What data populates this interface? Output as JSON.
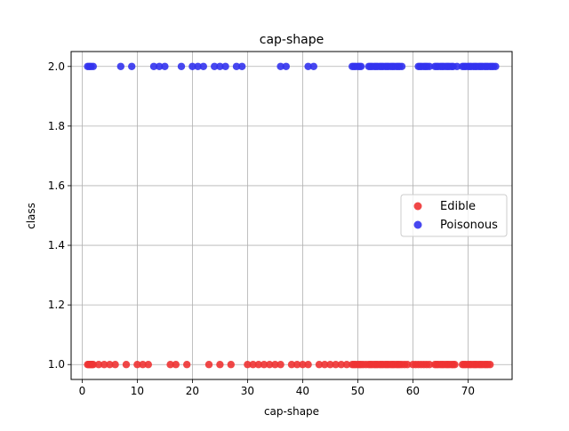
{
  "chart_data": {
    "type": "scatter",
    "title": "cap-shape",
    "xlabel": "cap-shape",
    "ylabel": "class",
    "xlim": [
      -2,
      78
    ],
    "ylim": [
      0.95,
      2.05
    ],
    "xticks": [
      {
        "value": 0,
        "label": "0"
      },
      {
        "value": 10,
        "label": "10"
      },
      {
        "value": 20,
        "label": "20"
      },
      {
        "value": 30,
        "label": "30"
      },
      {
        "value": 40,
        "label": "40"
      },
      {
        "value": 50,
        "label": "50"
      },
      {
        "value": 60,
        "label": "60"
      },
      {
        "value": 70,
        "label": "70"
      }
    ],
    "yticks": [
      {
        "value": 1.0,
        "label": "1.0"
      },
      {
        "value": 1.2,
        "label": "1.2"
      },
      {
        "value": 1.4,
        "label": "1.4"
      },
      {
        "value": 1.6,
        "label": "1.6"
      },
      {
        "value": 1.8,
        "label": "1.8"
      },
      {
        "value": 2.0,
        "label": "2.0"
      }
    ],
    "grid": true,
    "legend_position": "center-right",
    "series": [
      {
        "name": "Edible",
        "color": "#ee3333",
        "y": 1.0,
        "x": [
          1,
          1.2,
          1.4,
          1.6,
          1.8,
          2,
          3,
          4,
          5,
          6,
          8,
          10,
          11,
          12,
          16,
          17,
          19,
          23,
          25,
          27,
          30,
          31,
          32,
          33,
          34,
          35,
          36,
          38,
          39,
          40,
          41,
          43,
          44,
          45,
          46,
          47,
          48,
          49,
          49.3,
          49.6,
          50,
          50.3,
          50.6,
          51,
          51.5,
          52,
          52.3,
          52.6,
          53,
          53.3,
          53.6,
          54,
          54.3,
          54.6,
          55,
          55.3,
          55.6,
          56,
          56.3,
          56.6,
          57,
          57.3,
          57.6,
          58,
          58.5,
          59,
          60,
          60.5,
          61,
          61.5,
          62,
          62.5,
          63,
          64,
          64.3,
          64.6,
          65,
          65.3,
          65.6,
          66,
          66.3,
          66.6,
          67,
          67.3,
          67.6,
          69,
          69.3,
          69.6,
          70,
          70.3,
          70.6,
          71,
          71.3,
          71.6,
          72,
          72.3,
          72.6,
          73,
          73.3,
          73.6,
          74
        ]
      },
      {
        "name": "Poisonous",
        "color": "#3333ee",
        "y": 2.0,
        "x": [
          1,
          1.3,
          1.6,
          2,
          7,
          9,
          13,
          14,
          15,
          18,
          20,
          21,
          22,
          24,
          25,
          26,
          28,
          29,
          36,
          37,
          41,
          42,
          49,
          49.3,
          49.6,
          50,
          50.3,
          50.6,
          52,
          52.3,
          52.6,
          53,
          53.3,
          53.6,
          54,
          54.3,
          54.6,
          55,
          55.3,
          55.6,
          56,
          56.3,
          56.6,
          57,
          57.3,
          57.6,
          58,
          61,
          61.3,
          61.6,
          62,
          62.3,
          62.6,
          63,
          64,
          64.3,
          64.6,
          65,
          65.3,
          65.6,
          66,
          66.3,
          66.6,
          67,
          67.3,
          68,
          69,
          69.3,
          69.6,
          70,
          70.3,
          70.6,
          71,
          71.3,
          71.6,
          72,
          72.3,
          72.6,
          73,
          73.3,
          73.6,
          74,
          74.3,
          74.6,
          75
        ]
      }
    ]
  }
}
